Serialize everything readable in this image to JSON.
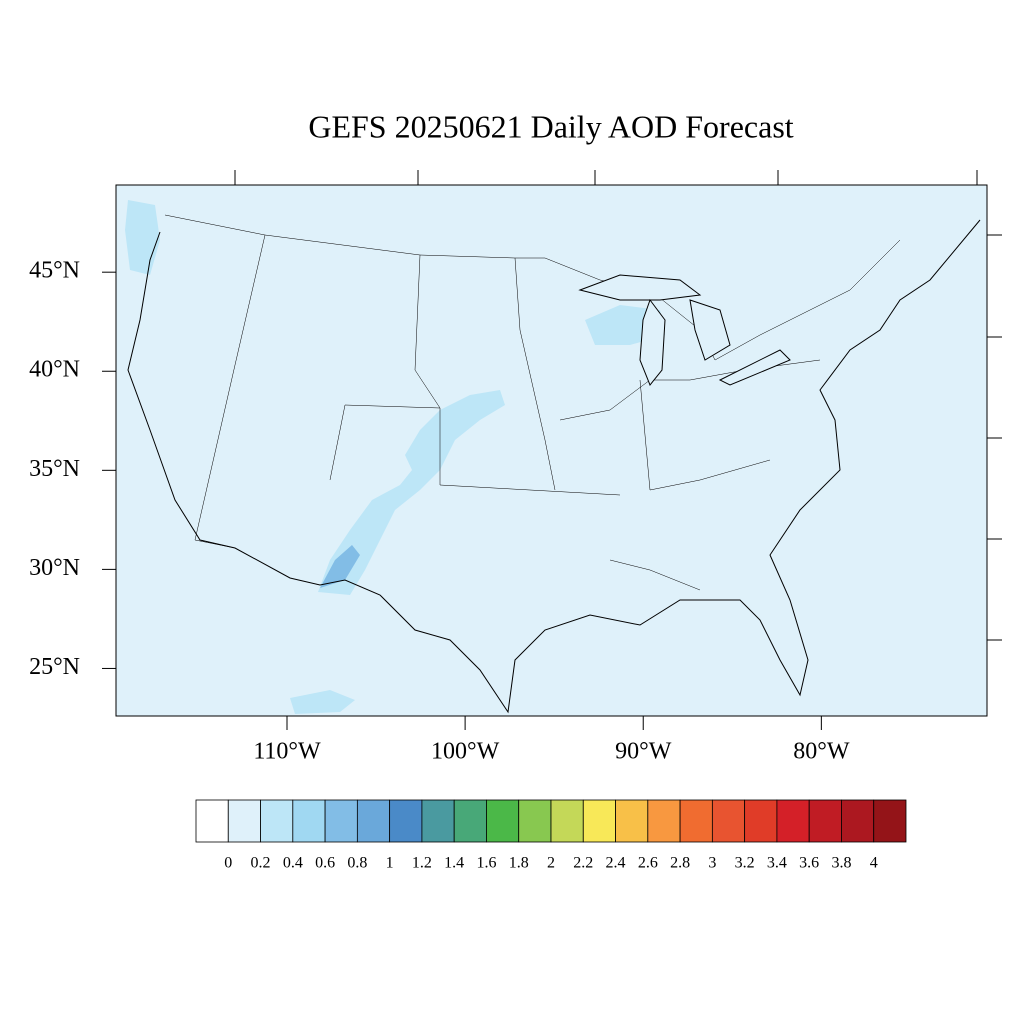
{
  "chart_data": {
    "type": "map",
    "title": "GEFS 20250621 Daily AOD Forecast",
    "xlim": [
      -119.6,
      -70.7
    ],
    "ylim": [
      22.6,
      49.4
    ],
    "xticks": [
      {
        "value": -110,
        "label": "110°W"
      },
      {
        "value": -100,
        "label": "100°W"
      },
      {
        "value": -90,
        "label": "90°W"
      },
      {
        "value": -80,
        "label": "80°W"
      }
    ],
    "yticks": [
      {
        "value": 45,
        "label": "45°N"
      },
      {
        "value": 40,
        "label": "40°N"
      },
      {
        "value": 35,
        "label": "35°N"
      },
      {
        "value": 30,
        "label": "30°N"
      },
      {
        "value": 25,
        "label": "25°N"
      }
    ],
    "colorbar": {
      "levels": [
        0,
        0.2,
        0.4,
        0.6,
        0.8,
        1,
        1.2,
        1.4,
        1.6,
        1.8,
        2,
        2.2,
        2.4,
        2.6,
        2.8,
        3,
        3.2,
        3.4,
        3.6,
        3.8,
        4
      ],
      "colors": [
        "#ffffff",
        "#dff1fa",
        "#bde6f7",
        "#a0d8f2",
        "#82bde6",
        "#6aa8da",
        "#4a8ac8",
        "#4a9aa0",
        "#48a878",
        "#4bb848",
        "#88c850",
        "#c4d858",
        "#f8e858",
        "#f8c048",
        "#f89840",
        "#f06c30",
        "#e85430",
        "#e03c28",
        "#d42028",
        "#c01c24",
        "#ac1820",
        "#941418"
      ]
    }
  }
}
